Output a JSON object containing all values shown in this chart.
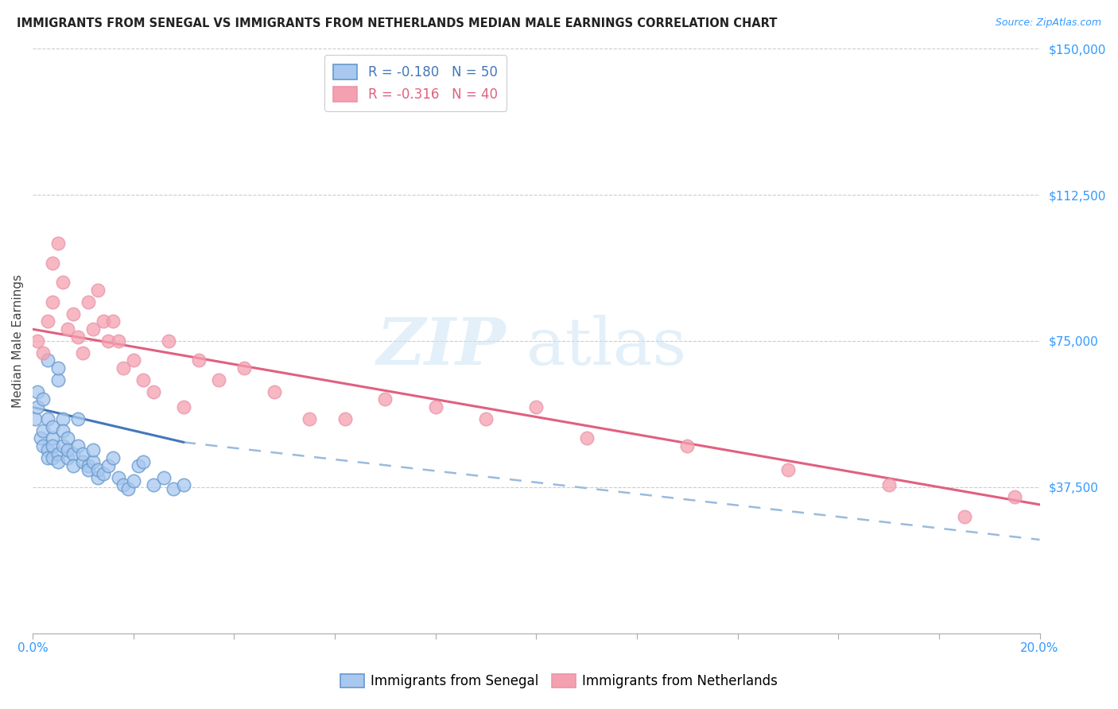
{
  "title": "IMMIGRANTS FROM SENEGAL VS IMMIGRANTS FROM NETHERLANDS MEDIAN MALE EARNINGS CORRELATION CHART",
  "source": "Source: ZipAtlas.com",
  "ylabel": "Median Male Earnings",
  "yticks": [
    0,
    37500,
    75000,
    112500,
    150000
  ],
  "ytick_labels": [
    "",
    "$37,500",
    "$75,000",
    "$112,500",
    "$150,000"
  ],
  "xmin": 0.0,
  "xmax": 0.2,
  "ymin": 0,
  "ymax": 150000,
  "color_senegal_fill": "#a8c8f0",
  "color_senegal_edge": "#6699cc",
  "color_netherlands_fill": "#f5a0b0",
  "color_netherlands_edge": "#e896aa",
  "color_senegal_line": "#4477bb",
  "color_netherlands_line": "#e06080",
  "color_dashed_line": "#99bbdd",
  "legend_line1": "R = -0.180   N = 50",
  "legend_line2": "R = -0.316   N = 40",
  "watermark_zip": "ZIP",
  "watermark_atlas": "atlas",
  "bottom_label_senegal": "Immigrants from Senegal",
  "bottom_label_netherlands": "Immigrants from Netherlands",
  "senegal_x": [
    0.0005,
    0.001,
    0.001,
    0.0015,
    0.002,
    0.002,
    0.002,
    0.003,
    0.003,
    0.003,
    0.003,
    0.004,
    0.004,
    0.004,
    0.004,
    0.005,
    0.005,
    0.005,
    0.005,
    0.006,
    0.006,
    0.006,
    0.007,
    0.007,
    0.007,
    0.008,
    0.008,
    0.009,
    0.009,
    0.01,
    0.01,
    0.011,
    0.011,
    0.012,
    0.012,
    0.013,
    0.013,
    0.014,
    0.015,
    0.016,
    0.017,
    0.018,
    0.019,
    0.02,
    0.021,
    0.022,
    0.024,
    0.026,
    0.028,
    0.03
  ],
  "senegal_y": [
    55000,
    62000,
    58000,
    50000,
    48000,
    52000,
    60000,
    55000,
    47000,
    45000,
    70000,
    50000,
    53000,
    48000,
    45000,
    65000,
    68000,
    46000,
    44000,
    55000,
    52000,
    48000,
    50000,
    45000,
    47000,
    46000,
    43000,
    55000,
    48000,
    44000,
    46000,
    43000,
    42000,
    44000,
    47000,
    40000,
    42000,
    41000,
    43000,
    45000,
    40000,
    38000,
    37000,
    39000,
    43000,
    44000,
    38000,
    40000,
    37000,
    38000
  ],
  "netherlands_x": [
    0.001,
    0.002,
    0.003,
    0.004,
    0.004,
    0.005,
    0.006,
    0.007,
    0.008,
    0.009,
    0.01,
    0.011,
    0.012,
    0.013,
    0.014,
    0.015,
    0.016,
    0.017,
    0.018,
    0.02,
    0.022,
    0.024,
    0.027,
    0.03,
    0.033,
    0.037,
    0.042,
    0.048,
    0.055,
    0.062,
    0.07,
    0.08,
    0.09,
    0.1,
    0.11,
    0.13,
    0.15,
    0.17,
    0.185,
    0.195
  ],
  "netherlands_y": [
    75000,
    72000,
    80000,
    85000,
    95000,
    100000,
    90000,
    78000,
    82000,
    76000,
    72000,
    85000,
    78000,
    88000,
    80000,
    75000,
    80000,
    75000,
    68000,
    70000,
    65000,
    62000,
    75000,
    58000,
    70000,
    65000,
    68000,
    62000,
    55000,
    55000,
    60000,
    58000,
    55000,
    58000,
    50000,
    48000,
    42000,
    38000,
    30000,
    35000
  ],
  "senegal_line_x0": 0.0,
  "senegal_line_x1": 0.03,
  "senegal_line_y0": 58000,
  "senegal_line_y1": 49000,
  "netherlands_line_x0": 0.0,
  "netherlands_line_x1": 0.2,
  "netherlands_line_y0": 78000,
  "netherlands_line_y1": 33000,
  "dashed_line_x0": 0.03,
  "dashed_line_x1": 0.2,
  "dashed_line_y0": 49000,
  "dashed_line_y1": 24000
}
